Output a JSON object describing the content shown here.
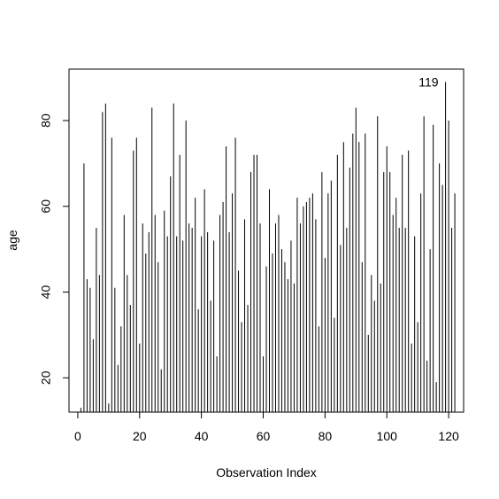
{
  "chart_data": {
    "type": "bar",
    "style": "histogram-spikes",
    "xlabel": "Observation Index",
    "ylabel": "age",
    "xlim": [
      -2.84,
      124.84
    ],
    "ylim": [
      12,
      92
    ],
    "xticks": [
      0,
      20,
      40,
      60,
      80,
      100,
      120
    ],
    "yticks": [
      20,
      40,
      60,
      80
    ],
    "baseline": 12,
    "x": [
      1,
      2,
      3,
      4,
      5,
      6,
      7,
      8,
      9,
      10,
      11,
      12,
      13,
      14,
      15,
      16,
      17,
      18,
      19,
      20,
      21,
      22,
      23,
      24,
      25,
      26,
      27,
      28,
      29,
      30,
      31,
      32,
      33,
      34,
      35,
      36,
      37,
      38,
      39,
      40,
      41,
      42,
      43,
      44,
      45,
      46,
      47,
      48,
      49,
      50,
      51,
      52,
      53,
      54,
      55,
      56,
      57,
      58,
      59,
      60,
      61,
      62,
      63,
      64,
      65,
      66,
      67,
      68,
      69,
      70,
      71,
      72,
      73,
      74,
      75,
      76,
      77,
      78,
      79,
      80,
      81,
      82,
      83,
      84,
      85,
      86,
      87,
      88,
      89,
      90,
      91,
      92,
      93,
      94,
      95,
      96,
      97,
      98,
      99,
      100,
      101,
      102,
      103,
      104,
      105,
      106,
      107,
      108,
      109,
      110,
      111,
      112,
      113,
      114,
      115,
      116,
      117,
      118,
      119,
      120,
      121,
      122
    ],
    "values": [
      13,
      70,
      43,
      41,
      29,
      55,
      44,
      82,
      84,
      14,
      76,
      41,
      23,
      32,
      58,
      44,
      37,
      73,
      76,
      28,
      56,
      49,
      54,
      83,
      58,
      47,
      22,
      59,
      53,
      67,
      84,
      53,
      72,
      52,
      80,
      56,
      55,
      62,
      36,
      53,
      64,
      54,
      38,
      52,
      25,
      58,
      61,
      74,
      54,
      63,
      76,
      45,
      33,
      57,
      37,
      68,
      72,
      72,
      56,
      25,
      46,
      64,
      49,
      56,
      58,
      50,
      47,
      43,
      52,
      42,
      62,
      56,
      60,
      61,
      62,
      63,
      57,
      32,
      68,
      48,
      63,
      66,
      34,
      72,
      51,
      75,
      55,
      69,
      77,
      83,
      75,
      47,
      77,
      30,
      44,
      38,
      81,
      42,
      68,
      74,
      68,
      58,
      62,
      55,
      72,
      55,
      73,
      28,
      53,
      33,
      63,
      81,
      24,
      50,
      79,
      19,
      70,
      65,
      89,
      80,
      55,
      63
    ],
    "annotation": {
      "label": "119",
      "x": 119,
      "y": 89
    }
  }
}
